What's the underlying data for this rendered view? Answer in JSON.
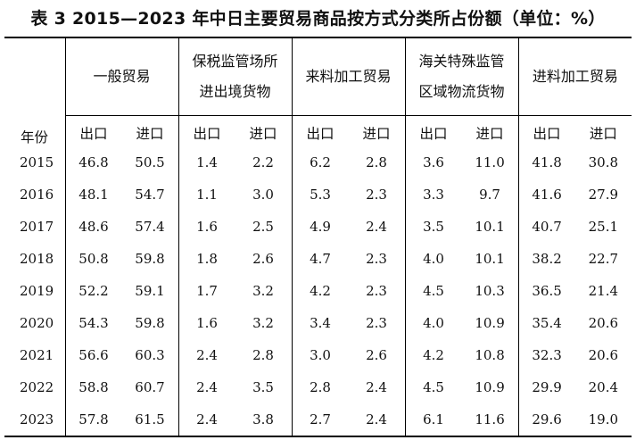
{
  "caption": "表 3  2015—2023 年中日主要贸易商品按方式分类所占份额（单位：%）",
  "header": {
    "year_label": "年份",
    "groups": [
      {
        "line1": "一般贸易",
        "line2": ""
      },
      {
        "line1": "保税监管场所",
        "line2": "进出境货物"
      },
      {
        "line1": "来料加工贸易",
        "line2": ""
      },
      {
        "line1": "海关特殊监管",
        "line2": "区域物流货物"
      },
      {
        "line1": "进料加工贸易",
        "line2": ""
      }
    ],
    "export_label": "出口",
    "import_label": "进口"
  },
  "rows": [
    {
      "year": "2015",
      "values": [
        "46.8",
        "50.5",
        "1.4",
        "2.2",
        "6.2",
        "2.8",
        "3.6",
        "11.0",
        "41.8",
        "30.8"
      ]
    },
    {
      "year": "2016",
      "values": [
        "48.1",
        "54.7",
        "1.1",
        "3.0",
        "5.3",
        "2.3",
        "3.3",
        "9.7",
        "41.6",
        "27.9"
      ]
    },
    {
      "year": "2017",
      "values": [
        "48.6",
        "57.4",
        "1.6",
        "2.5",
        "4.9",
        "2.4",
        "3.5",
        "10.1",
        "40.7",
        "25.1"
      ]
    },
    {
      "year": "2018",
      "values": [
        "50.8",
        "59.8",
        "1.8",
        "2.6",
        "4.7",
        "2.3",
        "4.0",
        "10.1",
        "38.2",
        "22.7"
      ]
    },
    {
      "year": "2019",
      "values": [
        "52.2",
        "59.1",
        "1.7",
        "3.2",
        "4.2",
        "2.3",
        "4.5",
        "10.3",
        "36.5",
        "21.4"
      ]
    },
    {
      "year": "2020",
      "values": [
        "54.3",
        "59.8",
        "1.6",
        "3.2",
        "3.4",
        "2.3",
        "4.0",
        "10.9",
        "35.4",
        "20.6"
      ]
    },
    {
      "year": "2021",
      "values": [
        "56.6",
        "60.3",
        "2.4",
        "2.8",
        "3.0",
        "2.6",
        "4.2",
        "10.8",
        "32.3",
        "20.6"
      ]
    },
    {
      "year": "2022",
      "values": [
        "58.8",
        "60.7",
        "2.4",
        "3.5",
        "2.8",
        "2.4",
        "4.5",
        "10.9",
        "29.9",
        "20.4"
      ]
    },
    {
      "year": "2023",
      "values": [
        "57.8",
        "61.5",
        "2.4",
        "3.8",
        "2.7",
        "2.4",
        "6.1",
        "11.6",
        "29.6",
        "19.0"
      ]
    }
  ]
}
